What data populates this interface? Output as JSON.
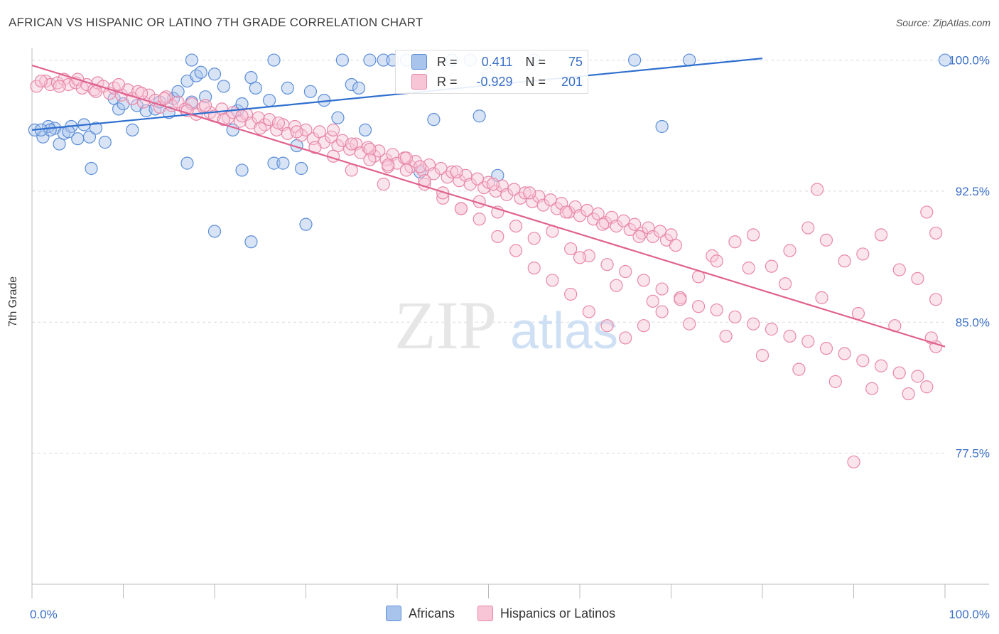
{
  "title": "AFRICAN VS HISPANIC OR LATINO 7TH GRADE CORRELATION CHART",
  "source": "Source: ZipAtlas.com",
  "watermark": {
    "zip": "ZIP",
    "atlas": "atlas"
  },
  "colors": {
    "africans": "#5b8ed8",
    "africans_fill": "#a9c4ec",
    "africans_line": "#2f6fcf",
    "hispanics": "#e887a8",
    "hispanics_fill": "#f7c5d6",
    "hispanics_line": "#e0628f",
    "axis_text": "#3a6fc6",
    "grid": "#d9d9d9"
  },
  "legend_top": {
    "rows": [
      {
        "r_label": "R =",
        "r_value": " 0.411",
        "n_label": "N =",
        "n_value": " 75"
      },
      {
        "r_label": "R =",
        "r_value": "-0.929",
        "n_label": "N =",
        "n_value": "201"
      }
    ]
  },
  "legend_bottom": {
    "items": [
      "Africans",
      "Hispanics or Latinos"
    ]
  },
  "chart_data": {
    "type": "scatter",
    "title": "AFRICAN VS HISPANIC OR LATINO 7TH GRADE CORRELATION CHART",
    "xlabel": "",
    "ylabel": "7th Grade",
    "xlim": [
      0,
      100
    ],
    "ylim": [
      70.0,
      101.0
    ],
    "x_tick_labels": [
      "0.0%",
      "100.0%"
    ],
    "y_ticks": [
      77.5,
      85.0,
      92.5,
      100.0
    ],
    "y_tick_labels": [
      "77.5%",
      "85.0%",
      "92.5%",
      "100.0%"
    ],
    "grid": true,
    "legend_position": "top-center",
    "series": [
      {
        "name": "Africans",
        "r": 0.411,
        "n": 75,
        "trend": {
          "x": [
            0,
            80
          ],
          "y": [
            96.0,
            100.1
          ]
        },
        "points": [
          [
            0.3,
            96.0
          ],
          [
            1.2,
            95.6
          ],
          [
            1.8,
            96.2
          ],
          [
            2.5,
            96.1
          ],
          [
            3.0,
            95.2
          ],
          [
            3.5,
            95.8
          ],
          [
            4.3,
            96.2
          ],
          [
            5.0,
            95.5
          ],
          [
            5.7,
            96.3
          ],
          [
            6.3,
            95.6
          ],
          [
            7.0,
            96.1
          ],
          [
            8.0,
            95.3
          ],
          [
            6.5,
            93.8
          ],
          [
            9.0,
            97.8
          ],
          [
            9.5,
            97.2
          ],
          [
            10.0,
            97.5
          ],
          [
            11.0,
            96.0
          ],
          [
            11.5,
            97.4
          ],
          [
            12.5,
            97.1
          ],
          [
            13.5,
            97.2
          ],
          [
            14.0,
            97.6
          ],
          [
            15.0,
            97.0
          ],
          [
            15.5,
            97.8
          ],
          [
            16.0,
            98.2
          ],
          [
            17.0,
            98.8
          ],
          [
            17.5,
            97.6
          ],
          [
            18.0,
            99.1
          ],
          [
            18.5,
            99.3
          ],
          [
            19.0,
            97.9
          ],
          [
            20.0,
            99.2
          ],
          [
            21.0,
            98.5
          ],
          [
            22.0,
            96.0
          ],
          [
            22.5,
            97.1
          ],
          [
            23.0,
            97.5
          ],
          [
            24.0,
            99.0
          ],
          [
            24.5,
            98.4
          ],
          [
            26.0,
            97.7
          ],
          [
            26.5,
            94.1
          ],
          [
            27.5,
            94.1
          ],
          [
            28.0,
            98.4
          ],
          [
            29.0,
            95.1
          ],
          [
            30.5,
            98.2
          ],
          [
            32.0,
            97.7
          ],
          [
            33.5,
            96.7
          ],
          [
            35.0,
            98.6
          ],
          [
            35.8,
            98.4
          ],
          [
            36.5,
            96.0
          ],
          [
            17.0,
            94.1
          ],
          [
            23.0,
            93.7
          ],
          [
            29.5,
            93.8
          ],
          [
            34.0,
            100.0
          ],
          [
            37.0,
            100.0
          ],
          [
            38.5,
            100.0
          ],
          [
            39.5,
            100.0
          ],
          [
            41.0,
            100.0
          ],
          [
            42.5,
            93.6
          ],
          [
            44.0,
            96.6
          ],
          [
            46.0,
            100.0
          ],
          [
            48.0,
            100.0
          ],
          [
            49.0,
            96.8
          ],
          [
            51.0,
            93.4
          ],
          [
            20.0,
            90.2
          ],
          [
            30.0,
            90.6
          ],
          [
            24.0,
            89.6
          ],
          [
            17.5,
            100.0
          ],
          [
            26.5,
            100.0
          ],
          [
            55.0,
            100.0
          ],
          [
            66.0,
            100.0
          ],
          [
            72.0,
            100.0
          ],
          [
            69.0,
            96.2
          ],
          [
            50.0,
            99.2
          ],
          [
            4.0,
            95.9
          ],
          [
            2.0,
            96.0
          ],
          [
            1.0,
            96.0
          ],
          [
            100.0,
            100.0
          ]
        ]
      },
      {
        "name": "Hispanics or Latinos",
        "r": -0.929,
        "n": 201,
        "trend": {
          "x": [
            0,
            100
          ],
          "y": [
            99.7,
            83.6
          ]
        },
        "points": [
          [
            0.5,
            98.5
          ],
          [
            1.5,
            98.8
          ],
          [
            2.0,
            98.6
          ],
          [
            2.8,
            98.7
          ],
          [
            3.5,
            98.9
          ],
          [
            4.0,
            98.6
          ],
          [
            4.8,
            98.7
          ],
          [
            5.5,
            98.4
          ],
          [
            6.0,
            98.6
          ],
          [
            6.8,
            98.3
          ],
          [
            7.2,
            98.7
          ],
          [
            7.8,
            98.5
          ],
          [
            8.5,
            98.1
          ],
          [
            9.0,
            98.4
          ],
          [
            9.8,
            98.0
          ],
          [
            10.5,
            98.3
          ],
          [
            11.0,
            97.8
          ],
          [
            11.6,
            98.2
          ],
          [
            12.2,
            97.6
          ],
          [
            12.8,
            98.0
          ],
          [
            13.5,
            97.7
          ],
          [
            14.0,
            97.3
          ],
          [
            14.7,
            97.9
          ],
          [
            15.3,
            97.4
          ],
          [
            16.0,
            97.6
          ],
          [
            16.8,
            97.2
          ],
          [
            17.5,
            97.5
          ],
          [
            18.0,
            96.9
          ],
          [
            18.8,
            97.3
          ],
          [
            19.5,
            97.0
          ],
          [
            20.0,
            96.8
          ],
          [
            20.8,
            97.2
          ],
          [
            21.5,
            96.7
          ],
          [
            22.0,
            97.0
          ],
          [
            22.8,
            96.5
          ],
          [
            23.5,
            96.9
          ],
          [
            24.0,
            96.4
          ],
          [
            24.8,
            96.7
          ],
          [
            25.5,
            96.3
          ],
          [
            26.0,
            96.6
          ],
          [
            26.8,
            96.0
          ],
          [
            27.5,
            96.3
          ],
          [
            28.0,
            95.8
          ],
          [
            28.8,
            96.2
          ],
          [
            29.5,
            95.7
          ],
          [
            30.0,
            96.0
          ],
          [
            30.8,
            95.5
          ],
          [
            31.5,
            95.9
          ],
          [
            32.0,
            95.3
          ],
          [
            32.8,
            95.6
          ],
          [
            33.5,
            95.1
          ],
          [
            34.0,
            95.4
          ],
          [
            34.8,
            94.9
          ],
          [
            35.5,
            95.2
          ],
          [
            36.0,
            94.7
          ],
          [
            36.8,
            95.0
          ],
          [
            37.5,
            94.5
          ],
          [
            38.0,
            94.8
          ],
          [
            38.8,
            94.3
          ],
          [
            39.5,
            94.6
          ],
          [
            40.0,
            94.1
          ],
          [
            40.8,
            94.4
          ],
          [
            41.5,
            93.9
          ],
          [
            42.0,
            94.2
          ],
          [
            42.8,
            93.7
          ],
          [
            43.5,
            94.0
          ],
          [
            44.0,
            93.5
          ],
          [
            44.8,
            93.8
          ],
          [
            45.5,
            93.3
          ],
          [
            46.0,
            93.6
          ],
          [
            46.8,
            93.1
          ],
          [
            47.5,
            93.4
          ],
          [
            48.0,
            92.9
          ],
          [
            48.8,
            93.2
          ],
          [
            49.5,
            92.7
          ],
          [
            50.0,
            93.0
          ],
          [
            50.8,
            92.5
          ],
          [
            51.5,
            92.8
          ],
          [
            52.0,
            92.3
          ],
          [
            52.8,
            92.6
          ],
          [
            53.5,
            92.1
          ],
          [
            54.0,
            92.4
          ],
          [
            54.8,
            91.9
          ],
          [
            55.5,
            92.2
          ],
          [
            56.0,
            91.7
          ],
          [
            56.8,
            92.0
          ],
          [
            57.5,
            91.5
          ],
          [
            58.0,
            91.8
          ],
          [
            58.8,
            91.3
          ],
          [
            59.5,
            91.6
          ],
          [
            60.0,
            91.1
          ],
          [
            60.8,
            91.4
          ],
          [
            61.5,
            90.9
          ],
          [
            62.0,
            91.2
          ],
          [
            62.8,
            90.7
          ],
          [
            63.5,
            91.0
          ],
          [
            64.0,
            90.5
          ],
          [
            64.8,
            90.8
          ],
          [
            65.5,
            90.3
          ],
          [
            66.0,
            90.6
          ],
          [
            66.8,
            90.1
          ],
          [
            67.5,
            90.4
          ],
          [
            68.0,
            89.9
          ],
          [
            68.8,
            90.2
          ],
          [
            69.5,
            89.7
          ],
          [
            70.0,
            90.0
          ],
          [
            1.0,
            98.8
          ],
          [
            3.0,
            98.5
          ],
          [
            5.0,
            98.9
          ],
          [
            7.0,
            98.2
          ],
          [
            9.5,
            98.6
          ],
          [
            12.0,
            98.1
          ],
          [
            14.5,
            97.8
          ],
          [
            17.0,
            97.1
          ],
          [
            19.0,
            97.4
          ],
          [
            21.0,
            96.6
          ],
          [
            23.0,
            96.8
          ],
          [
            25.0,
            96.1
          ],
          [
            27.0,
            96.4
          ],
          [
            29.0,
            95.9
          ],
          [
            31.0,
            95.0
          ],
          [
            33.0,
            94.5
          ],
          [
            35.0,
            93.7
          ],
          [
            37.0,
            94.9
          ],
          [
            39.0,
            93.9
          ],
          [
            41.0,
            94.4
          ],
          [
            43.0,
            92.9
          ],
          [
            45.0,
            92.1
          ],
          [
            47.0,
            91.5
          ],
          [
            49.0,
            91.9
          ],
          [
            51.0,
            91.3
          ],
          [
            53.0,
            90.5
          ],
          [
            55.0,
            89.8
          ],
          [
            57.0,
            90.2
          ],
          [
            59.0,
            89.2
          ],
          [
            61.0,
            88.8
          ],
          [
            63.0,
            88.3
          ],
          [
            65.0,
            87.9
          ],
          [
            67.0,
            87.4
          ],
          [
            69.0,
            86.9
          ],
          [
            71.0,
            86.4
          ],
          [
            73.0,
            85.9
          ],
          [
            75.0,
            85.7
          ],
          [
            77.0,
            85.3
          ],
          [
            79.0,
            84.9
          ],
          [
            81.0,
            84.6
          ],
          [
            83.0,
            84.2
          ],
          [
            85.0,
            83.9
          ],
          [
            87.0,
            83.5
          ],
          [
            89.0,
            83.2
          ],
          [
            91.0,
            82.8
          ],
          [
            93.0,
            82.5
          ],
          [
            95.0,
            82.1
          ],
          [
            97.0,
            81.9
          ],
          [
            99.0,
            83.6
          ],
          [
            42.5,
            93.9
          ],
          [
            46.5,
            93.6
          ],
          [
            50.5,
            92.9
          ],
          [
            54.5,
            92.4
          ],
          [
            58.5,
            91.3
          ],
          [
            62.5,
            90.6
          ],
          [
            66.5,
            89.9
          ],
          [
            70.5,
            89.4
          ],
          [
            74.5,
            88.8
          ],
          [
            78.5,
            88.1
          ],
          [
            82.5,
            87.2
          ],
          [
            86.5,
            86.4
          ],
          [
            90.5,
            85.5
          ],
          [
            94.5,
            84.8
          ],
          [
            98.5,
            84.1
          ],
          [
            60.0,
            88.7
          ],
          [
            64.0,
            87.1
          ],
          [
            68.0,
            86.2
          ],
          [
            72.0,
            84.9
          ],
          [
            76.0,
            84.2
          ],
          [
            80.0,
            83.1
          ],
          [
            84.0,
            82.3
          ],
          [
            88.0,
            81.6
          ],
          [
            92.0,
            81.2
          ],
          [
            96.0,
            80.9
          ],
          [
            98.0,
            81.3
          ],
          [
            99.0,
            86.3
          ],
          [
            97.0,
            87.5
          ],
          [
            95.0,
            88.0
          ],
          [
            93.0,
            90.0
          ],
          [
            91.0,
            88.9
          ],
          [
            89.0,
            88.5
          ],
          [
            87.0,
            89.7
          ],
          [
            85.0,
            90.4
          ],
          [
            83.0,
            89.1
          ],
          [
            81.0,
            88.2
          ],
          [
            79.0,
            90.0
          ],
          [
            77.0,
            89.6
          ],
          [
            75.0,
            88.5
          ],
          [
            73.0,
            87.6
          ],
          [
            71.0,
            86.3
          ],
          [
            69.0,
            85.6
          ],
          [
            67.0,
            84.8
          ],
          [
            65.0,
            84.1
          ],
          [
            63.0,
            84.8
          ],
          [
            61.0,
            85.6
          ],
          [
            59.0,
            86.6
          ],
          [
            57.0,
            87.4
          ],
          [
            55.0,
            88.1
          ],
          [
            53.0,
            89.1
          ],
          [
            51.0,
            89.9
          ],
          [
            49.0,
            90.9
          ],
          [
            47.0,
            91.5
          ],
          [
            45.0,
            92.4
          ],
          [
            43.0,
            93.1
          ],
          [
            41.0,
            93.7
          ],
          [
            39.0,
            94.0
          ],
          [
            37.0,
            94.3
          ],
          [
            35.0,
            95.2
          ],
          [
            33.0,
            96.0
          ],
          [
            38.5,
            92.9
          ],
          [
            86.0,
            92.6
          ],
          [
            98.0,
            91.3
          ],
          [
            99.0,
            90.1
          ],
          [
            90.0,
            77.0
          ]
        ]
      }
    ]
  }
}
